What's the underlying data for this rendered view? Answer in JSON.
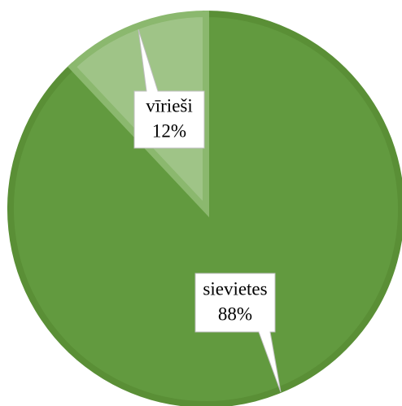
{
  "chart_data": {
    "type": "pie",
    "categories": [
      "sievietes",
      "vīrieši"
    ],
    "values": [
      88,
      12
    ],
    "value_labels": [
      "88%",
      "12%"
    ],
    "colors": [
      "#629a3f",
      "#9fc487"
    ],
    "edge_colors": [
      "#5a8f36",
      "#8bb86e"
    ]
  }
}
